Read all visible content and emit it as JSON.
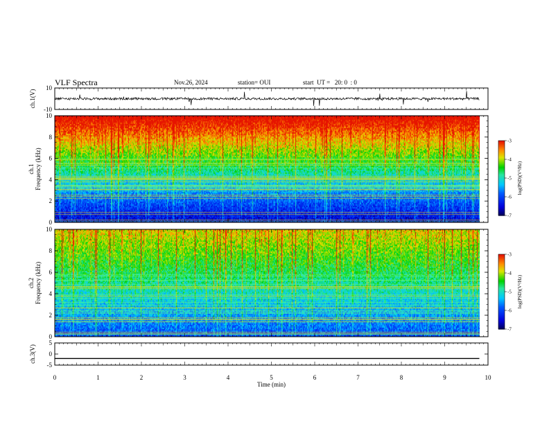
{
  "header": {
    "title": "VLF Spectra",
    "date": "Nov.26, 2024",
    "station": "station= OUI",
    "start_ut": "start  UT =   20: 0  : 0"
  },
  "chart_data": [
    {
      "type": "line",
      "title": "",
      "ylabel": "ch.1(V)",
      "ylim": [
        -10,
        10
      ],
      "yticks": [
        "10",
        "-10"
      ],
      "series": [
        {
          "values_description_approx": "noise around 0 V with spikes",
          "baseline": 0
        }
      ]
    },
    {
      "type": "heatmap",
      "ylabel_top": "ch.1",
      "ylabel": "Frequency  (kHz)",
      "ylim": [
        0,
        10
      ],
      "yticks": [
        "0",
        "2",
        "4",
        "6",
        "8",
        "10"
      ],
      "colorbar": {
        "label": "log(PSD)(V²/Hz)",
        "ticks": [
          "-3",
          "-4",
          "-5",
          "-6",
          "-7"
        ],
        "range": [
          -7,
          -3
        ]
      }
    },
    {
      "type": "heatmap",
      "ylabel_top": "ch.2",
      "ylabel": "Frequency  (kHz)",
      "ylim": [
        0,
        10
      ],
      "yticks": [
        "0",
        "2",
        "4",
        "6",
        "8",
        "10"
      ],
      "colorbar": {
        "label": "log(PSD)(V²/Hz)",
        "ticks": [
          "-3",
          "-4",
          "-5",
          "-6",
          "-7"
        ],
        "range": [
          -7,
          -3
        ]
      }
    },
    {
      "type": "line",
      "ylabel": "ch.3(V)",
      "ylim": [
        -5,
        5
      ],
      "yticks": [
        "5",
        "0",
        "-5"
      ],
      "series": [
        {
          "constant": -2
        }
      ]
    }
  ],
  "xaxis": {
    "label": "Time  (min)",
    "ticks": [
      "0",
      "1",
      "2",
      "3",
      "4",
      "5",
      "6",
      "7",
      "8",
      "9",
      "10"
    ],
    "range": [
      0,
      10
    ],
    "data_end": 9.8
  }
}
